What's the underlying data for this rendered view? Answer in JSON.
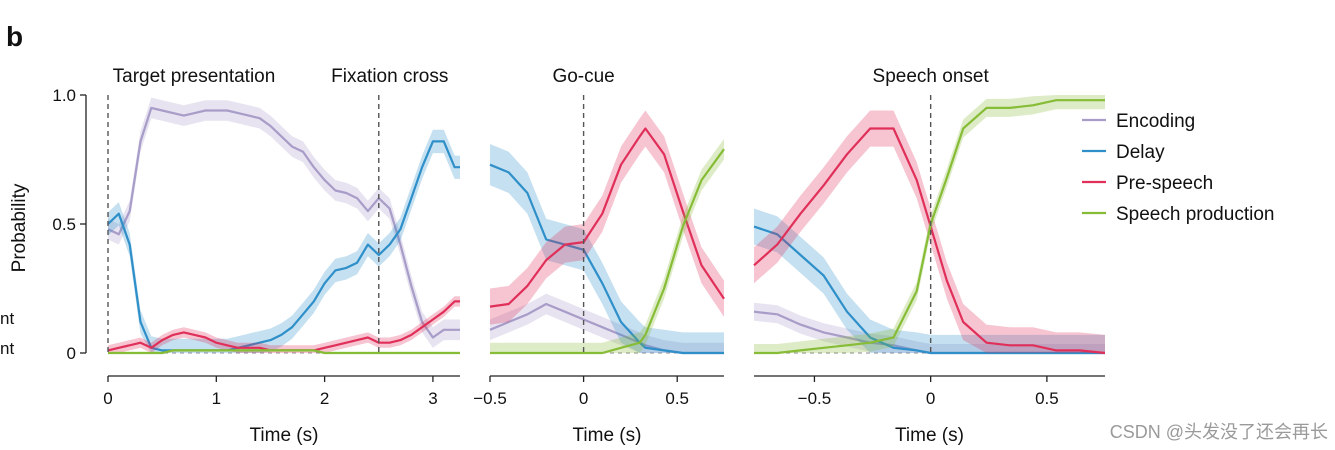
{
  "figure": {
    "panel_letter": "b",
    "left_cut_labels": [
      "nt",
      "nt"
    ],
    "watermark": "CSDN @头发没了还会再长"
  },
  "colors": {
    "encoding": "#A89CC8",
    "delay": "#2E8FC9",
    "pre_speech": "#E0305A",
    "speech_production": "#86BC36"
  },
  "chart_data": [
    {
      "type": "line",
      "id": "target",
      "title": "Target presentation",
      "event_labels": [
        "Target presentation",
        "Fixation cross"
      ],
      "event_times": [
        0,
        2.5
      ],
      "xlabel": "Time (s)",
      "ylabel": "Probability",
      "xlim": [
        0,
        3.25
      ],
      "ylim": [
        0,
        1
      ],
      "xticks": [
        0,
        1,
        2,
        3
      ],
      "xtick_labels": [
        "0",
        "1",
        "2",
        "3"
      ],
      "yticks": [
        0,
        0.5,
        1
      ],
      "ytick_labels": [
        "0",
        "0.5",
        "1.0"
      ],
      "x": [
        0,
        0.1,
        0.2,
        0.3,
        0.4,
        0.5,
        0.6,
        0.7,
        0.8,
        0.9,
        1.0,
        1.1,
        1.2,
        1.3,
        1.4,
        1.5,
        1.6,
        1.7,
        1.8,
        1.9,
        2.0,
        2.1,
        2.2,
        2.3,
        2.4,
        2.5,
        2.6,
        2.7,
        2.8,
        2.9,
        3.0,
        3.1,
        3.2,
        3.25
      ],
      "series": [
        {
          "name": "Encoding",
          "key": "encoding",
          "band": 0.04,
          "values": [
            0.48,
            0.46,
            0.55,
            0.82,
            0.95,
            0.94,
            0.93,
            0.92,
            0.93,
            0.94,
            0.94,
            0.94,
            0.93,
            0.92,
            0.91,
            0.88,
            0.84,
            0.8,
            0.78,
            0.72,
            0.67,
            0.63,
            0.62,
            0.6,
            0.55,
            0.6,
            0.56,
            0.42,
            0.26,
            0.12,
            0.06,
            0.09,
            0.09,
            0.09
          ]
        },
        {
          "name": "Delay",
          "key": "delay",
          "band": 0.045,
          "values": [
            0.5,
            0.54,
            0.42,
            0.12,
            0.02,
            0.01,
            0.01,
            0.01,
            0.01,
            0.01,
            0.01,
            0.01,
            0.02,
            0.03,
            0.04,
            0.05,
            0.07,
            0.1,
            0.15,
            0.2,
            0.27,
            0.32,
            0.33,
            0.35,
            0.42,
            0.38,
            0.42,
            0.48,
            0.6,
            0.72,
            0.82,
            0.82,
            0.72,
            0.72
          ]
        },
        {
          "name": "Pre-speech",
          "key": "pre_speech",
          "band": 0.02,
          "values": [
            0.01,
            0.02,
            0.03,
            0.04,
            0.02,
            0.05,
            0.07,
            0.08,
            0.07,
            0.06,
            0.04,
            0.03,
            0.02,
            0.02,
            0.02,
            0.01,
            0.01,
            0.01,
            0.01,
            0.01,
            0.02,
            0.03,
            0.04,
            0.05,
            0.06,
            0.04,
            0.04,
            0.05,
            0.07,
            0.1,
            0.13,
            0.16,
            0.2,
            0.2
          ]
        },
        {
          "name": "Speech production",
          "key": "speech_production",
          "band": 0.005,
          "values": [
            0.0,
            0.0,
            0.0,
            0.0,
            0.0,
            0.0,
            0.01,
            0.01,
            0.01,
            0.01,
            0.01,
            0.01,
            0.01,
            0.01,
            0.01,
            0.01,
            0.01,
            0.01,
            0.01,
            0.01,
            0.0,
            0.0,
            0.0,
            0.0,
            0.0,
            0.0,
            0.0,
            0.0,
            0.0,
            0.0,
            0.0,
            0.0,
            0.0,
            0.0
          ]
        }
      ]
    },
    {
      "type": "line",
      "id": "gocue",
      "title": "Go-cue",
      "event_labels": [
        "Go-cue"
      ],
      "event_times": [
        0
      ],
      "xlabel": "Time (s)",
      "ylabel": "",
      "xlim": [
        -0.5,
        0.75
      ],
      "ylim": [
        0,
        1
      ],
      "xticks": [
        -0.5,
        0,
        0.5
      ],
      "xtick_labels": [
        "−0.5",
        "0",
        "0.5"
      ],
      "yticks": [],
      "ytick_labels": [],
      "x": [
        -0.5,
        -0.4,
        -0.3,
        -0.2,
        -0.1,
        0.0,
        0.1,
        0.2,
        0.3,
        0.33,
        0.43,
        0.53,
        0.63,
        0.75
      ],
      "series": [
        {
          "name": "Encoding",
          "key": "encoding",
          "band": 0.04,
          "values": [
            0.09,
            0.12,
            0.15,
            0.19,
            0.16,
            0.13,
            0.1,
            0.07,
            0.04,
            0.03,
            0.01,
            0.0,
            0.0,
            0.0
          ]
        },
        {
          "name": "Delay",
          "key": "delay",
          "band": 0.08,
          "values": [
            0.73,
            0.7,
            0.62,
            0.44,
            0.42,
            0.4,
            0.27,
            0.12,
            0.04,
            0.02,
            0.01,
            0.0,
            0.0,
            0.0
          ]
        },
        {
          "name": "Pre-speech",
          "key": "pre_speech",
          "band": 0.07,
          "values": [
            0.18,
            0.19,
            0.26,
            0.36,
            0.42,
            0.43,
            0.54,
            0.73,
            0.84,
            0.87,
            0.77,
            0.55,
            0.34,
            0.21
          ]
        },
        {
          "name": "Speech production",
          "key": "speech_production",
          "band": 0.04,
          "values": [
            0.0,
            0.0,
            0.0,
            0.0,
            0.0,
            0.0,
            0.0,
            0.02,
            0.04,
            0.07,
            0.25,
            0.49,
            0.67,
            0.79
          ]
        }
      ]
    },
    {
      "type": "line",
      "id": "speech",
      "title": "Speech onset",
      "event_labels": [
        "Speech onset"
      ],
      "event_times": [
        0
      ],
      "xlabel": "Time (s)",
      "ylabel": "",
      "xlim": [
        -0.76,
        0.75
      ],
      "ylim": [
        0,
        1
      ],
      "xticks": [
        -0.5,
        0,
        0.5
      ],
      "xtick_labels": [
        "−0.5",
        "0",
        "0.5"
      ],
      "yticks": [],
      "ytick_labels": [],
      "x": [
        -0.76,
        -0.66,
        -0.56,
        -0.46,
        -0.36,
        -0.26,
        -0.16,
        -0.06,
        0.0,
        0.07,
        0.14,
        0.24,
        0.34,
        0.44,
        0.54,
        0.64,
        0.75
      ],
      "series": [
        {
          "name": "Encoding",
          "key": "encoding",
          "band": 0.035,
          "values": [
            0.16,
            0.15,
            0.11,
            0.08,
            0.06,
            0.04,
            0.03,
            0.01,
            0.0,
            0.0,
            0.0,
            0.0,
            0.0,
            0.0,
            0.0,
            0.0,
            0.0
          ]
        },
        {
          "name": "Delay",
          "key": "delay",
          "band": 0.07,
          "values": [
            0.49,
            0.46,
            0.38,
            0.3,
            0.16,
            0.06,
            0.02,
            0.01,
            0.0,
            0.0,
            0.0,
            0.0,
            0.0,
            0.0,
            0.0,
            0.0,
            0.0
          ]
        },
        {
          "name": "Pre-speech",
          "key": "pre_speech",
          "band": 0.07,
          "values": [
            0.34,
            0.42,
            0.54,
            0.65,
            0.77,
            0.87,
            0.87,
            0.67,
            0.49,
            0.28,
            0.12,
            0.04,
            0.03,
            0.03,
            0.01,
            0.01,
            0.0
          ]
        },
        {
          "name": "Speech production",
          "key": "speech_production",
          "band": 0.035,
          "values": [
            0.0,
            0.0,
            0.01,
            0.02,
            0.03,
            0.04,
            0.06,
            0.24,
            0.5,
            0.68,
            0.87,
            0.95,
            0.95,
            0.96,
            0.98,
            0.98,
            0.98
          ]
        }
      ]
    }
  ],
  "legend": {
    "placement": "top-right",
    "entries": [
      {
        "label": "Encoding",
        "key": "encoding"
      },
      {
        "label": "Delay",
        "key": "delay"
      },
      {
        "label": "Pre-speech",
        "key": "pre_speech"
      },
      {
        "label": "Speech production",
        "key": "speech_production"
      }
    ]
  }
}
